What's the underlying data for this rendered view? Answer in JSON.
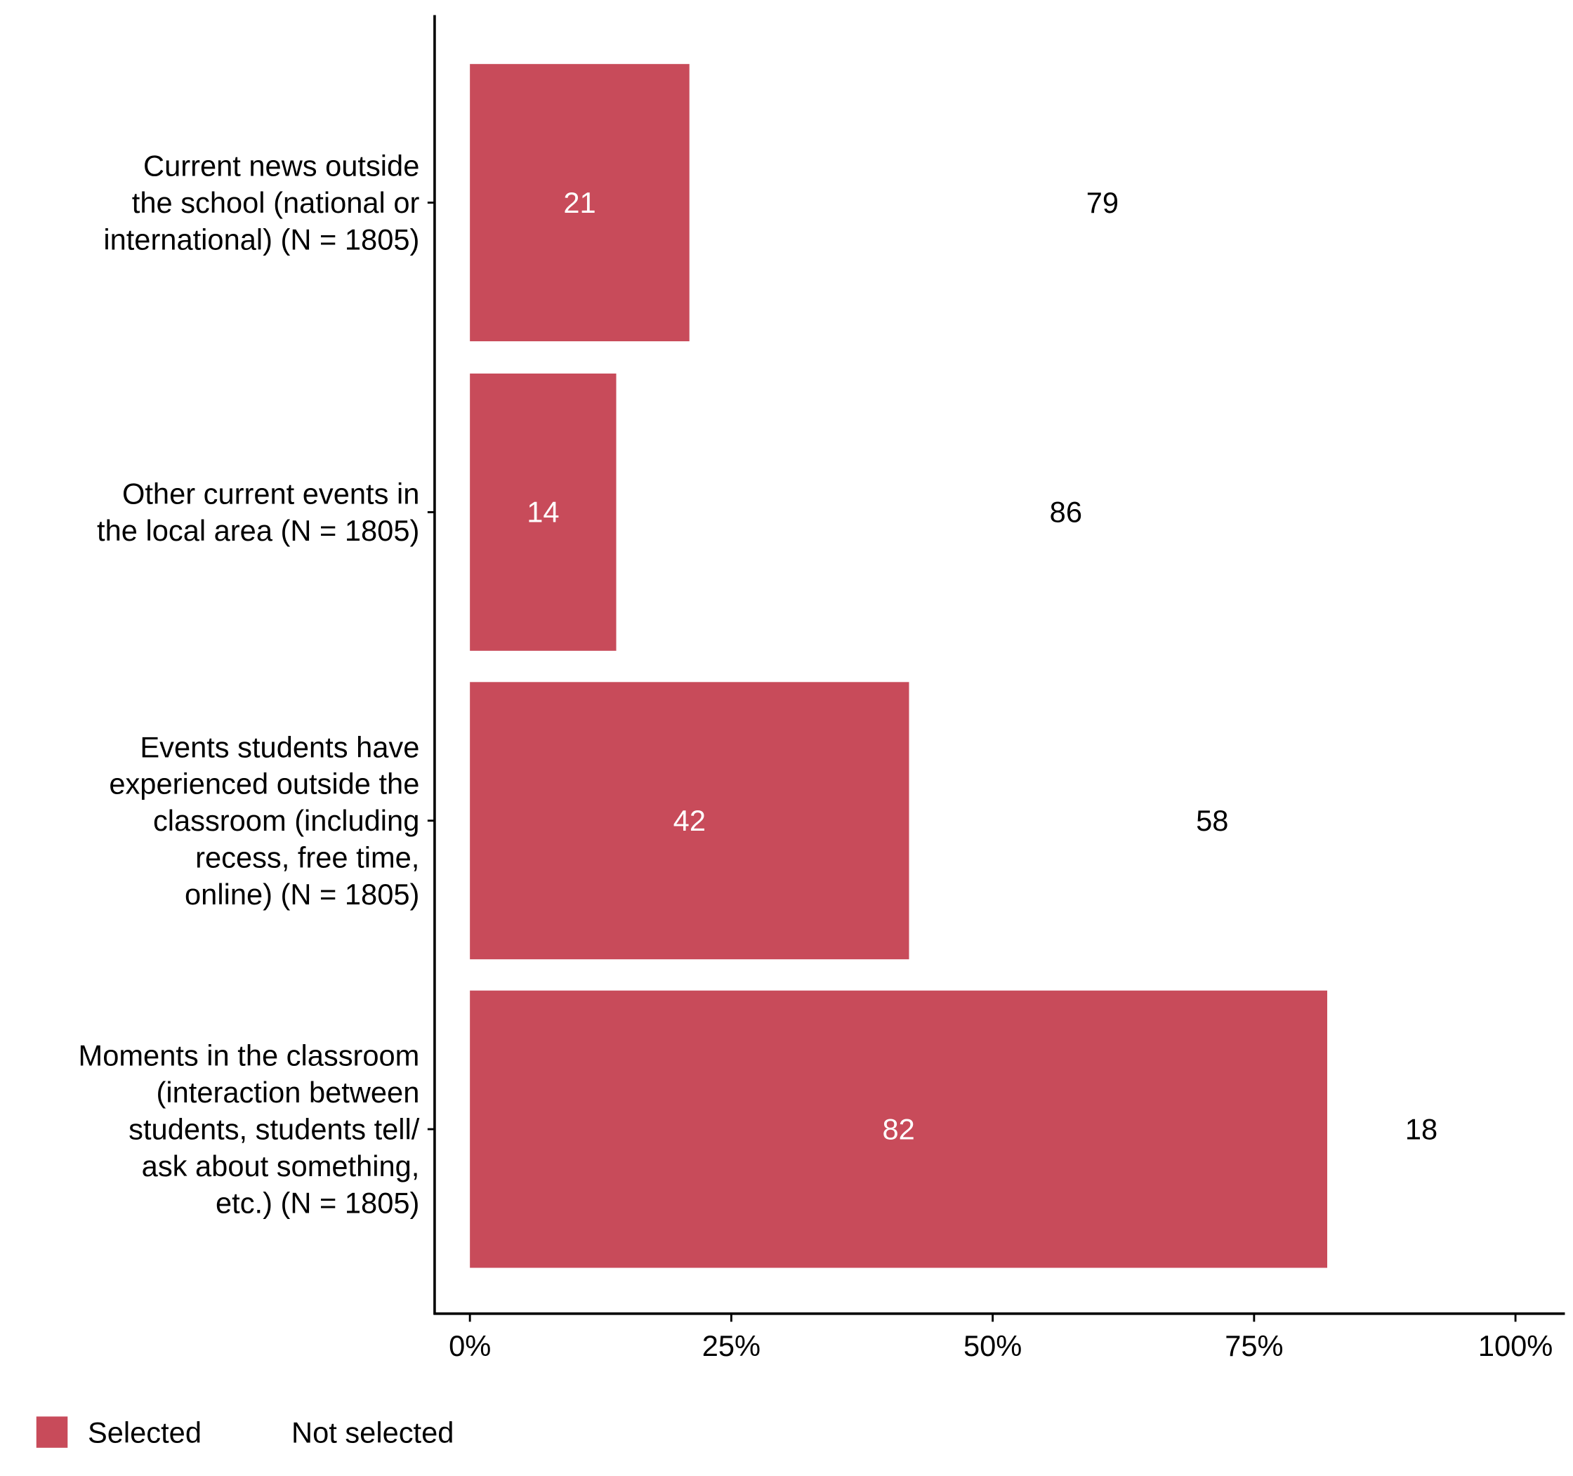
{
  "chart_data": {
    "type": "bar",
    "orientation": "horizontal",
    "stacked": true,
    "categories": [
      [
        "Current news outside",
        "the school (national or",
        "international) (N = 1805)"
      ],
      [
        "Other current events in",
        "the local area (N = 1805)"
      ],
      [
        "Events students have",
        "experienced outside the",
        "classroom (including",
        "recess, free time,",
        "online) (N = 1805)"
      ],
      [
        "Moments in the classroom",
        "(interaction between",
        "students, students tell/",
        "ask about something,",
        "etc.) (N = 1805)"
      ]
    ],
    "series": [
      {
        "name": "Selected",
        "values": [
          21,
          14,
          42,
          82
        ],
        "color": "#C84B5A"
      },
      {
        "name": "Not selected",
        "values": [
          79,
          86,
          58,
          18
        ],
        "color": "#FFFFFF"
      }
    ],
    "xlim": [
      0,
      100
    ],
    "xticks": [
      "0%",
      "25%",
      "50%",
      "75%",
      "100%"
    ],
    "xtick_values": [
      0,
      25,
      50,
      75,
      100
    ],
    "grid": false,
    "legend": {
      "position": "bottom-left",
      "entries": [
        "Selected",
        "Not selected"
      ]
    }
  }
}
